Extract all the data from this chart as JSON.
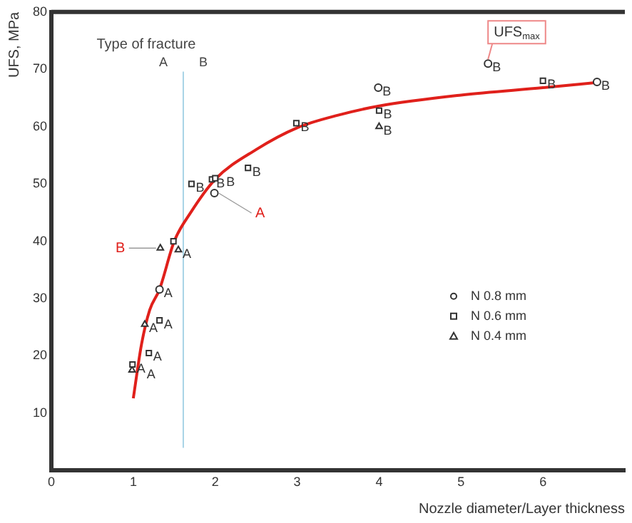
{
  "chart_data": {
    "type": "scatter",
    "xlabel": "Nozzle diameter/Layer thickness",
    "ylabel": "UFS, MPa",
    "xlim": [
      0,
      7
    ],
    "xticks": [
      0,
      1,
      2,
      3,
      4,
      5,
      6
    ],
    "ylim": [
      0,
      80
    ],
    "yticks": [
      10,
      20,
      30,
      40,
      50,
      60,
      70,
      80
    ],
    "grid": false,
    "legend": "right",
    "series": [
      {
        "name": "N 0.8 mm",
        "color": "#333333",
        "marker": "circle",
        "x": [
          5.33,
          3.99,
          6.66,
          1.99,
          1.32
        ],
        "values": [
          71,
          66.8,
          67.8,
          48.4,
          31.6
        ],
        "value_labels": [
          "B",
          "B",
          "B",
          null,
          "A"
        ]
      },
      {
        "name": "N 0.6 mm",
        "color": "#333333",
        "marker": "square",
        "x": [
          1.71,
          1.96,
          2.0,
          2.4,
          2.99,
          4.0,
          6.0,
          1.49,
          1.32,
          1.19,
          0.99
        ],
        "values": [
          50,
          50.8,
          51,
          52.8,
          60.6,
          62.8,
          68,
          40,
          26.2,
          20.5,
          18.5
        ],
        "value_labels": [
          "B",
          "B",
          "B",
          "B",
          "B",
          "B",
          "B",
          null,
          "A",
          "A",
          "A"
        ]
      },
      {
        "name": "N 0.4 mm",
        "color": "#333333",
        "marker": "triangle",
        "x": [
          4.0,
          1.33,
          1.55,
          1.14,
          0.985
        ],
        "values": [
          60,
          38.8,
          38.5,
          25.5,
          17.5
        ],
        "value_labels": [
          "B",
          null,
          "A",
          "A",
          "A"
        ]
      },
      {
        "type": "line",
        "color": "#e0201b",
        "marker": "none",
        "x": [
          1,
          1.1,
          1.2,
          1.32,
          1.5,
          1.7,
          2,
          2.5,
          3,
          3.5,
          4,
          5,
          6,
          6.66
        ],
        "values": [
          12.6,
          22,
          28,
          31.6,
          40,
          45,
          50.8,
          56,
          59.8,
          62,
          63.6,
          65.5,
          66.8,
          67.7
        ]
      }
    ],
    "ref_lines": [
      {
        "axis": "x",
        "value": 1.61,
        "label": "Type of fracture",
        "color": "#a8d4e6"
      }
    ],
    "annotations": [
      "A",
      "B",
      {
        "text": "A",
        "x": 1.99,
        "y": 48.4
      },
      {
        "text": "B",
        "x": 1.33,
        "y": 38.8
      },
      {
        "text": "UFS$_{max}$",
        "x": 5.33,
        "y": 71
      }
    ]
  }
}
